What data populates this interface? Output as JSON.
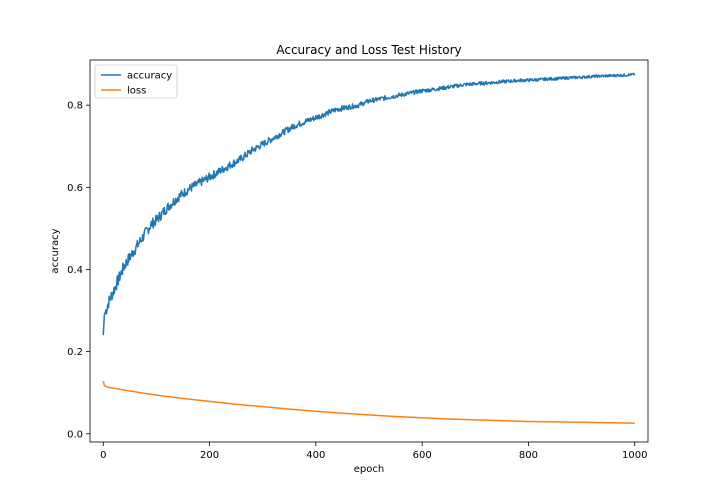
{
  "chart_data": {
    "type": "line",
    "title": "Accuracy and Loss Test History",
    "xlabel": "epoch",
    "ylabel": "accuracy",
    "xlim": [
      -25,
      1025
    ],
    "ylim": [
      -0.02,
      0.91
    ],
    "xticks": [
      0,
      200,
      400,
      600,
      800,
      1000
    ],
    "yticks": [
      0.0,
      0.2,
      0.4,
      0.6,
      0.8
    ],
    "legend": "top-left",
    "grid": false,
    "series": [
      {
        "name": "accuracy",
        "color": "#1f77b4",
        "x": [
          0,
          2,
          5,
          10,
          20,
          30,
          40,
          50,
          60,
          70,
          80,
          90,
          100,
          120,
          140,
          160,
          180,
          200,
          220,
          240,
          260,
          280,
          300,
          320,
          340,
          360,
          380,
          400,
          420,
          440,
          460,
          480,
          500,
          520,
          540,
          560,
          580,
          600,
          620,
          640,
          660,
          680,
          700,
          720,
          740,
          760,
          780,
          800,
          820,
          840,
          860,
          880,
          900,
          920,
          940,
          960,
          980,
          1000
        ],
        "values": [
          0.24,
          0.29,
          0.3,
          0.32,
          0.35,
          0.38,
          0.41,
          0.43,
          0.45,
          0.47,
          0.49,
          0.51,
          0.52,
          0.55,
          0.575,
          0.595,
          0.61,
          0.625,
          0.64,
          0.655,
          0.67,
          0.69,
          0.705,
          0.72,
          0.735,
          0.75,
          0.76,
          0.77,
          0.78,
          0.79,
          0.795,
          0.8,
          0.81,
          0.815,
          0.82,
          0.825,
          0.83,
          0.835,
          0.838,
          0.842,
          0.846,
          0.85,
          0.852,
          0.854,
          0.856,
          0.858,
          0.86,
          0.861,
          0.862,
          0.864,
          0.865,
          0.867,
          0.868,
          0.87,
          0.871,
          0.872,
          0.873,
          0.875
        ]
      },
      {
        "name": "loss",
        "color": "#ff7f0e",
        "x": [
          0,
          2,
          5,
          10,
          20,
          50,
          100,
          150,
          200,
          250,
          300,
          350,
          400,
          450,
          500,
          550,
          600,
          650,
          700,
          750,
          800,
          850,
          900,
          950,
          1000
        ],
        "values": [
          0.128,
          0.118,
          0.115,
          0.113,
          0.111,
          0.104,
          0.094,
          0.086,
          0.079,
          0.072,
          0.066,
          0.06,
          0.055,
          0.05,
          0.046,
          0.042,
          0.039,
          0.036,
          0.034,
          0.032,
          0.03,
          0.029,
          0.028,
          0.027,
          0.026
        ]
      }
    ]
  }
}
